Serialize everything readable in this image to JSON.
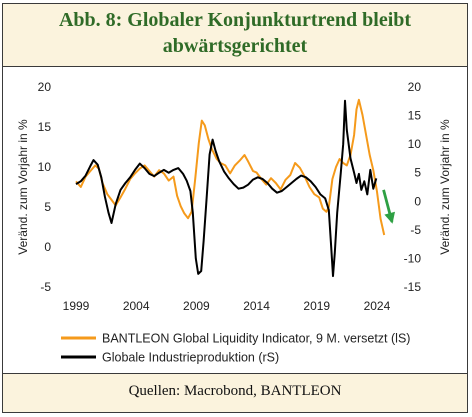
{
  "title": {
    "line1": "Abb. 8: Globaler Konjunkturtrend bleibt",
    "line2": "abwärtsgerichtet"
  },
  "source": "Quellen: Macrobond, BANTLEON",
  "colors": {
    "series1": "#f59a1b",
    "series2": "#000000",
    "arrow": "#2ea043",
    "title": "#2f6b27",
    "panel_bg": "#fbf3dd"
  },
  "chart_data": {
    "type": "line",
    "y_left": {
      "label": "Veränd. zum Vorjahr in %",
      "lim": [
        -5,
        20
      ],
      "ticks": [
        "-5",
        "0",
        "5",
        "10",
        "15",
        "20"
      ]
    },
    "y_right": {
      "label": "Veränd. zum Vorjahr in %",
      "lim": [
        -15,
        20
      ],
      "ticks": [
        "-15",
        "-10",
        "-5",
        "0",
        "5",
        "10",
        "15",
        "20"
      ]
    },
    "x_axis": {
      "lim": [
        1999,
        2025.5
      ],
      "ticks": [
        "1999",
        "2004",
        "2009",
        "2014",
        "2019",
        "2024"
      ]
    },
    "grid": false,
    "legend_position": "bottom",
    "series": [
      {
        "name": "BANTLEON Global Liquidity Indicator, 9 M. versetzt (lS)",
        "axis": "left",
        "points": [
          [
            1999.0,
            8.2
          ],
          [
            1999.4,
            7.5
          ],
          [
            1999.8,
            8.8
          ],
          [
            2000.2,
            9.5
          ],
          [
            2000.6,
            10.2
          ],
          [
            2000.9,
            9.8
          ],
          [
            2001.2,
            8.0
          ],
          [
            2001.6,
            6.6
          ],
          [
            2002.0,
            5.8
          ],
          [
            2002.3,
            5.2
          ],
          [
            2002.7,
            6.2
          ],
          [
            2003.1,
            7.3
          ],
          [
            2003.5,
            8.5
          ],
          [
            2003.9,
            9.2
          ],
          [
            2004.3,
            9.8
          ],
          [
            2004.7,
            10.2
          ],
          [
            2005.1,
            9.5
          ],
          [
            2005.5,
            8.8
          ],
          [
            2005.9,
            9.6
          ],
          [
            2006.3,
            9.2
          ],
          [
            2006.7,
            8.3
          ],
          [
            2007.1,
            8.8
          ],
          [
            2007.4,
            6.4
          ],
          [
            2007.7,
            5.1
          ],
          [
            2008.0,
            4.2
          ],
          [
            2008.3,
            3.6
          ],
          [
            2008.6,
            4.4
          ],
          [
            2008.9,
            8.5
          ],
          [
            2009.2,
            13.0
          ],
          [
            2009.45,
            15.8
          ],
          [
            2009.7,
            15.2
          ],
          [
            2010.0,
            13.5
          ],
          [
            2010.3,
            12.2
          ],
          [
            2010.7,
            11.0
          ],
          [
            2011.0,
            10.5
          ],
          [
            2011.4,
            10.2
          ],
          [
            2011.8,
            9.2
          ],
          [
            2012.2,
            10.2
          ],
          [
            2012.6,
            10.8
          ],
          [
            2013.0,
            11.5
          ],
          [
            2013.3,
            10.7
          ],
          [
            2013.7,
            9.5
          ],
          [
            2014.0,
            9.3
          ],
          [
            2014.4,
            8.5
          ],
          [
            2014.8,
            7.8
          ],
          [
            2015.2,
            8.6
          ],
          [
            2015.6,
            8.0
          ],
          [
            2016.0,
            7.2
          ],
          [
            2016.4,
            8.4
          ],
          [
            2016.8,
            9.0
          ],
          [
            2017.2,
            10.5
          ],
          [
            2017.6,
            9.9
          ],
          [
            2018.0,
            8.8
          ],
          [
            2018.4,
            7.5
          ],
          [
            2018.8,
            6.6
          ],
          [
            2019.2,
            6.2
          ],
          [
            2019.5,
            4.8
          ],
          [
            2019.8,
            4.4
          ],
          [
            2020.0,
            5.0
          ],
          [
            2020.3,
            8.5
          ],
          [
            2020.6,
            10.0
          ],
          [
            2020.9,
            11.0
          ],
          [
            2021.2,
            10.5
          ],
          [
            2021.5,
            10.2
          ],
          [
            2021.8,
            11.5
          ],
          [
            2022.1,
            14.0
          ],
          [
            2022.3,
            17.2
          ],
          [
            2022.5,
            18.4
          ],
          [
            2022.8,
            16.5
          ],
          [
            2023.1,
            14.0
          ],
          [
            2023.4,
            11.5
          ],
          [
            2023.7,
            9.6
          ],
          [
            2024.0,
            7.0
          ],
          [
            2024.3,
            3.5
          ],
          [
            2024.6,
            1.5
          ]
        ]
      },
      {
        "name": "Globale Industrieproduktion (rS)",
        "axis": "right",
        "points": [
          [
            1999.0,
            3.0
          ],
          [
            1999.4,
            3.5
          ],
          [
            1999.8,
            4.5
          ],
          [
            2000.2,
            6.2
          ],
          [
            2000.45,
            7.2
          ],
          [
            2000.8,
            6.4
          ],
          [
            2001.1,
            4.2
          ],
          [
            2001.4,
            0.8
          ],
          [
            2001.7,
            -2.0
          ],
          [
            2001.95,
            -3.8
          ],
          [
            2002.3,
            -0.5
          ],
          [
            2002.7,
            2.0
          ],
          [
            2003.1,
            3.2
          ],
          [
            2003.5,
            4.2
          ],
          [
            2003.9,
            5.5
          ],
          [
            2004.3,
            6.6
          ],
          [
            2004.7,
            5.8
          ],
          [
            2005.1,
            4.8
          ],
          [
            2005.5,
            4.4
          ],
          [
            2005.9,
            5.0
          ],
          [
            2006.3,
            5.5
          ],
          [
            2006.7,
            5.0
          ],
          [
            2007.1,
            5.5
          ],
          [
            2007.5,
            5.8
          ],
          [
            2007.9,
            4.8
          ],
          [
            2008.2,
            3.6
          ],
          [
            2008.5,
            1.8
          ],
          [
            2008.7,
            -2.0
          ],
          [
            2008.95,
            -10.0
          ],
          [
            2009.15,
            -12.7
          ],
          [
            2009.4,
            -12.2
          ],
          [
            2009.6,
            -7.0
          ],
          [
            2009.85,
            0.5
          ],
          [
            2010.1,
            8.2
          ],
          [
            2010.35,
            10.8
          ],
          [
            2010.6,
            8.8
          ],
          [
            2010.9,
            7.0
          ],
          [
            2011.3,
            5.2
          ],
          [
            2011.7,
            4.0
          ],
          [
            2012.1,
            3.0
          ],
          [
            2012.5,
            2.2
          ],
          [
            2012.9,
            2.4
          ],
          [
            2013.3,
            2.9
          ],
          [
            2013.7,
            3.8
          ],
          [
            2014.1,
            4.2
          ],
          [
            2014.5,
            3.9
          ],
          [
            2014.9,
            3.2
          ],
          [
            2015.3,
            2.2
          ],
          [
            2015.7,
            1.5
          ],
          [
            2016.1,
            1.8
          ],
          [
            2016.5,
            2.5
          ],
          [
            2016.9,
            3.2
          ],
          [
            2017.3,
            3.9
          ],
          [
            2017.7,
            4.5
          ],
          [
            2018.1,
            4.2
          ],
          [
            2018.5,
            3.5
          ],
          [
            2018.9,
            2.5
          ],
          [
            2019.3,
            1.2
          ],
          [
            2019.7,
            0.5
          ],
          [
            2020.0,
            -1.5
          ],
          [
            2020.2,
            -8.0
          ],
          [
            2020.35,
            -13.1
          ],
          [
            2020.5,
            -9.0
          ],
          [
            2020.7,
            -2.0
          ],
          [
            2021.0,
            5.0
          ],
          [
            2021.2,
            10.0
          ],
          [
            2021.35,
            17.6
          ],
          [
            2021.5,
            12.5
          ],
          [
            2021.8,
            7.5
          ],
          [
            2022.1,
            5.0
          ],
          [
            2022.3,
            3.2
          ],
          [
            2022.5,
            4.8
          ],
          [
            2022.7,
            2.0
          ],
          [
            2022.95,
            3.5
          ],
          [
            2023.2,
            1.2
          ],
          [
            2023.45,
            5.5
          ],
          [
            2023.7,
            2.2
          ],
          [
            2023.95,
            4.0
          ]
        ]
      }
    ],
    "annotation": {
      "type": "arrow",
      "direction": "down",
      "color": "#2ea043"
    }
  }
}
